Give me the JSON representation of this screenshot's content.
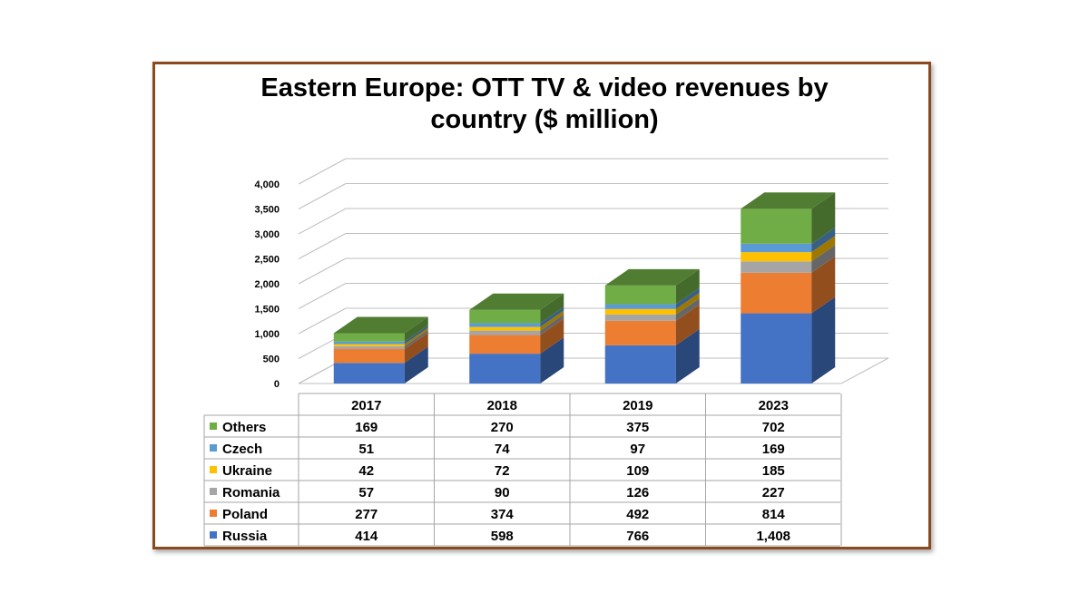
{
  "chart_data": {
    "type": "bar",
    "stacked": true,
    "three_d": true,
    "title": "Eastern Europe: OTT TV & video revenues by country ($ million)",
    "title_lines": [
      "Eastern Europe: OTT TV & video revenues by",
      "country ($ million)"
    ],
    "categories": [
      "2017",
      "2018",
      "2019",
      "2023"
    ],
    "ylim": [
      0,
      4000
    ],
    "yticks": [
      0,
      500,
      1000,
      1500,
      2000,
      2500,
      3000,
      3500,
      4000
    ],
    "ytick_labels": [
      "0",
      "500",
      "1,000",
      "1,500",
      "2,000",
      "2,500",
      "3,000",
      "3,500",
      "4,000"
    ],
    "grid": true,
    "legend_placement": "data-table",
    "series": [
      {
        "name": "Russia",
        "values": [
          414,
          598,
          766,
          1408
        ],
        "labels": [
          "414",
          "598",
          "766",
          "1,408"
        ],
        "color": "#4472c4"
      },
      {
        "name": "Poland",
        "values": [
          277,
          374,
          492,
          814
        ],
        "labels": [
          "277",
          "374",
          "492",
          "814"
        ],
        "color": "#ed7d31"
      },
      {
        "name": "Romania",
        "values": [
          57,
          90,
          126,
          227
        ],
        "labels": [
          "57",
          "90",
          "126",
          "227"
        ],
        "color": "#a5a5a5"
      },
      {
        "name": "Ukraine",
        "values": [
          42,
          72,
          109,
          185
        ],
        "labels": [
          "42",
          "72",
          "109",
          "185"
        ],
        "color": "#ffc000"
      },
      {
        "name": "Czech",
        "values": [
          51,
          74,
          97,
          169
        ],
        "labels": [
          "51",
          "74",
          "97",
          "169"
        ],
        "color": "#5b9bd5"
      },
      {
        "name": "Others",
        "values": [
          169,
          270,
          375,
          702
        ],
        "labels": [
          "169",
          "270",
          "375",
          "702"
        ],
        "color": "#70ad47"
      }
    ]
  }
}
